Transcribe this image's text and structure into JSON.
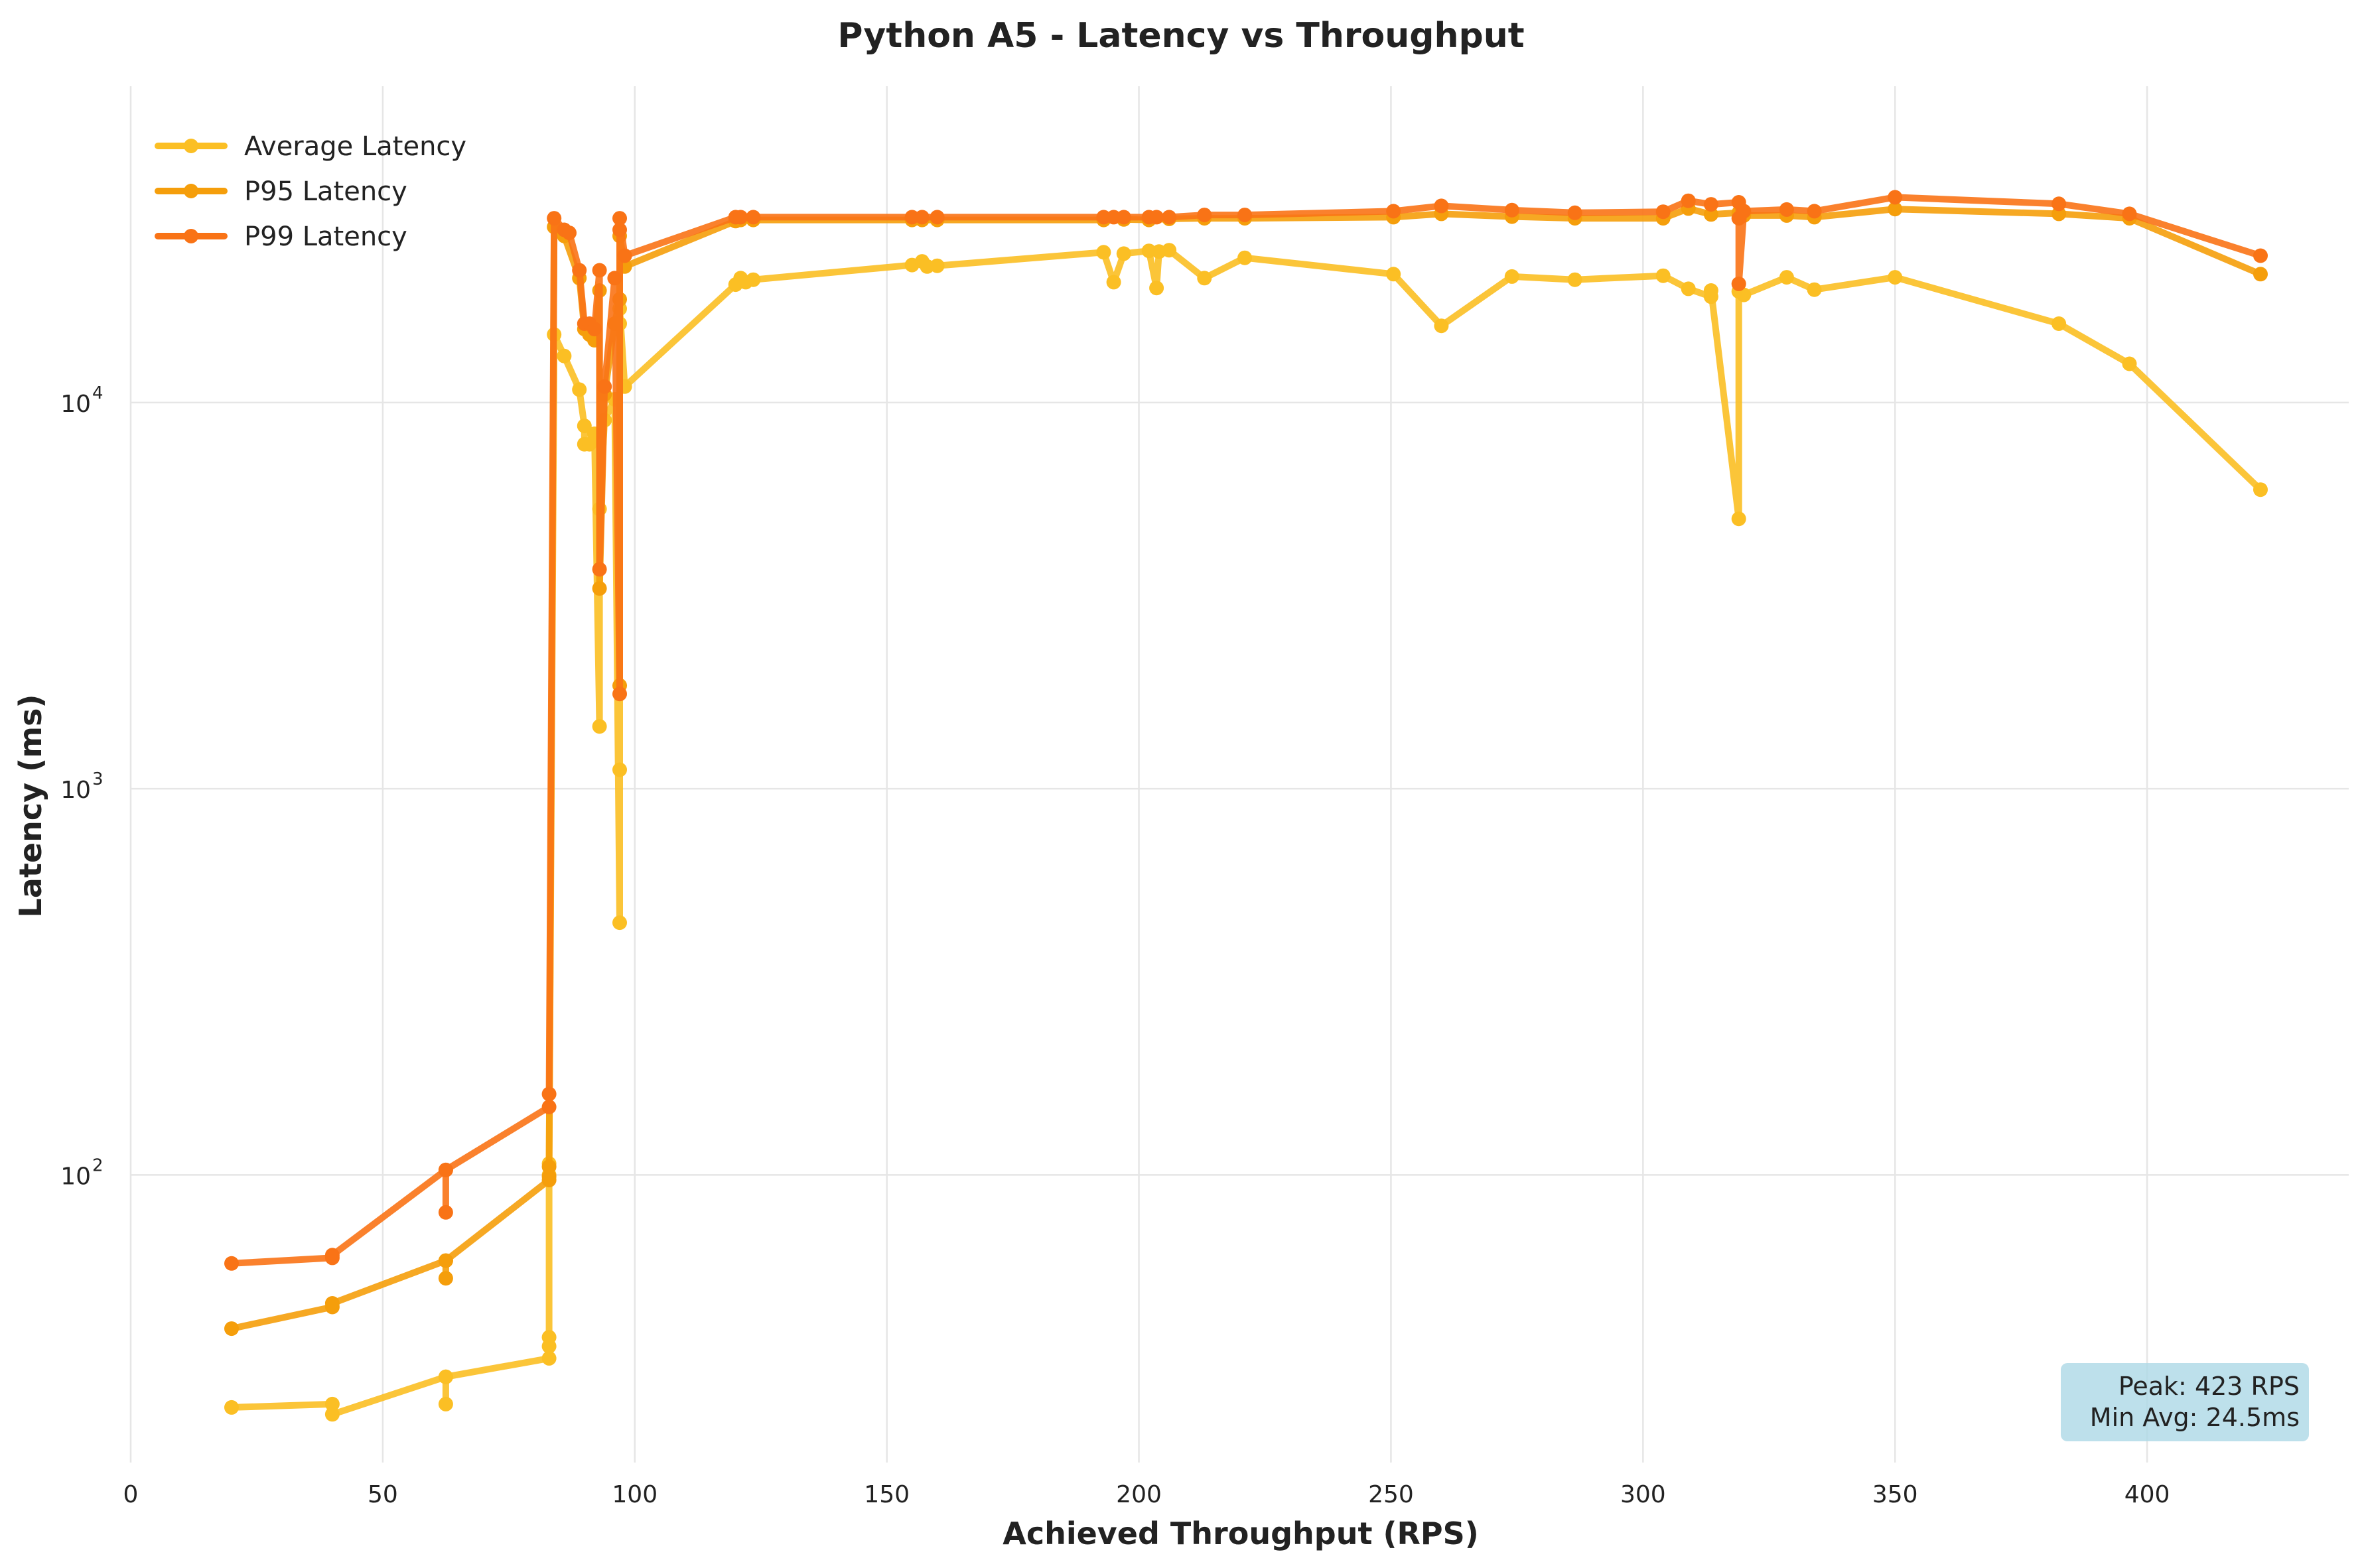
{
  "chart_data": {
    "type": "line",
    "title": "Python A5 - Latency vs Throughput",
    "xlabel": "Achieved Throughput (RPS)",
    "ylabel": "Latency (ms)",
    "xlim": [
      0,
      440
    ],
    "ylim": [
      18,
      52000
    ],
    "yscale": "log",
    "x_ticks": [
      0,
      50,
      100,
      150,
      200,
      250,
      300,
      350,
      400
    ],
    "x_tick_labels": [
      "0",
      "50",
      "100",
      "150",
      "200",
      "250",
      "300",
      "350",
      "400"
    ],
    "y_ticks": [
      100,
      1000,
      10000
    ],
    "y_tick_labels": [
      {
        "base": "10",
        "exp": "2"
      },
      {
        "base": "10",
        "exp": "3"
      },
      {
        "base": "10",
        "exp": "4"
      }
    ],
    "grid": true,
    "legend_position": "top-left",
    "annotation": {
      "lines": [
        "Peak: 423 RPS",
        "Min Avg: 24.5ms"
      ],
      "position": "bottom-right",
      "bg_color": "#add8e6"
    },
    "series": [
      {
        "name": "Average Latency",
        "color": "#fbbf24",
        "points": [
          [
            20,
            25
          ],
          [
            40,
            25.5
          ],
          [
            40,
            24
          ],
          [
            62.5,
            30
          ],
          [
            62.5,
            25.5
          ],
          [
            62.5,
            30
          ],
          [
            83,
            33.5
          ],
          [
            83,
            36
          ],
          [
            83,
            38
          ],
          [
            83,
            100
          ],
          [
            83,
            107
          ],
          [
            84,
            15000
          ],
          [
            86,
            13200
          ],
          [
            89,
            10800
          ],
          [
            90,
            8700
          ],
          [
            90,
            7800
          ],
          [
            91,
            7800
          ],
          [
            92,
            8300
          ],
          [
            93,
            1450
          ],
          [
            93,
            5300
          ],
          [
            94,
            9000
          ],
          [
            96,
            10200
          ],
          [
            97,
            450
          ],
          [
            97,
            1120
          ],
          [
            97,
            16000
          ],
          [
            97,
            17500
          ],
          [
            98,
            11000
          ],
          [
            120,
            20200
          ],
          [
            121,
            21000
          ],
          [
            122,
            20500
          ],
          [
            123.5,
            20800
          ],
          [
            155,
            22700
          ],
          [
            157,
            23200
          ],
          [
            158,
            22500
          ],
          [
            160,
            22600
          ],
          [
            193,
            24500
          ],
          [
            195,
            20500
          ],
          [
            197,
            24300
          ],
          [
            202,
            24700
          ],
          [
            203.5,
            19800
          ],
          [
            204,
            24600
          ],
          [
            206,
            24800
          ],
          [
            213,
            21000
          ],
          [
            221,
            23700
          ],
          [
            250.5,
            21500
          ],
          [
            260,
            15800
          ],
          [
            274,
            21200
          ],
          [
            286.5,
            20800
          ],
          [
            304,
            21300
          ],
          [
            309,
            19700
          ],
          [
            313.5,
            18800
          ],
          [
            313.5,
            19500
          ],
          [
            319,
            5000
          ],
          [
            319,
            19400
          ],
          [
            320,
            19000
          ],
          [
            328.5,
            21100
          ],
          [
            334,
            19600
          ],
          [
            350,
            21100
          ],
          [
            382.5,
            16000
          ],
          [
            396.5,
            12600
          ],
          [
            422.5,
            5950
          ]
        ]
      },
      {
        "name": "P95 Latency",
        "color": "#f59e0b",
        "points": [
          [
            20,
            40
          ],
          [
            40,
            45.5
          ],
          [
            40,
            46.5
          ],
          [
            62.5,
            60
          ],
          [
            62.5,
            54
          ],
          [
            62.5,
            60
          ],
          [
            83,
            97
          ],
          [
            83,
            99
          ],
          [
            83,
            105
          ],
          [
            84,
            28500
          ],
          [
            86,
            27000
          ],
          [
            89,
            21000
          ],
          [
            90,
            15500
          ],
          [
            91,
            15000
          ],
          [
            92,
            14500
          ],
          [
            93,
            19500
          ],
          [
            93,
            3300
          ],
          [
            94,
            10500
          ],
          [
            96,
            16000
          ],
          [
            97,
            18500
          ],
          [
            97,
            1850
          ],
          [
            97,
            27000
          ],
          [
            98,
            22500
          ],
          [
            120,
            29500
          ],
          [
            121,
            29700
          ],
          [
            123.5,
            29700
          ],
          [
            155,
            29700
          ],
          [
            157,
            29700
          ],
          [
            160,
            29700
          ],
          [
            193,
            29700
          ],
          [
            197,
            29800
          ],
          [
            202,
            29700
          ],
          [
            206,
            29900
          ],
          [
            213,
            30000
          ],
          [
            221,
            30000
          ],
          [
            250.5,
            30200
          ],
          [
            260,
            30800
          ],
          [
            274,
            30300
          ],
          [
            286.5,
            30000
          ],
          [
            304,
            30000
          ],
          [
            309,
            31800
          ],
          [
            313.5,
            30700
          ],
          [
            319,
            31000
          ],
          [
            320,
            30500
          ],
          [
            328.5,
            30500
          ],
          [
            334,
            30200
          ],
          [
            350,
            31700
          ],
          [
            382.5,
            30800
          ],
          [
            396.5,
            30000
          ],
          [
            422.5,
            21500
          ]
        ]
      },
      {
        "name": "P99 Latency",
        "color": "#f97316",
        "points": [
          [
            20,
            59
          ],
          [
            40,
            61
          ],
          [
            40,
            62
          ],
          [
            62.5,
            103
          ],
          [
            62.5,
            80
          ],
          [
            62.5,
            103
          ],
          [
            83,
            150
          ],
          [
            83,
            162
          ],
          [
            84,
            30000
          ],
          [
            86,
            28000
          ],
          [
            87,
            27500
          ],
          [
            89,
            22000
          ],
          [
            90,
            16000
          ],
          [
            91,
            16000
          ],
          [
            92,
            15500
          ],
          [
            93,
            22000
          ],
          [
            93,
            3700
          ],
          [
            94,
            11000
          ],
          [
            96,
            21000
          ],
          [
            97,
            1760
          ],
          [
            97,
            28000
          ],
          [
            97,
            30000
          ],
          [
            98,
            24000
          ],
          [
            120,
            30200
          ],
          [
            121,
            30200
          ],
          [
            123.5,
            30200
          ],
          [
            155,
            30200
          ],
          [
            157,
            30200
          ],
          [
            160,
            30200
          ],
          [
            193,
            30200
          ],
          [
            195,
            30200
          ],
          [
            197,
            30200
          ],
          [
            202,
            30200
          ],
          [
            203.5,
            30200
          ],
          [
            206,
            30200
          ],
          [
            213,
            30600
          ],
          [
            221,
            30600
          ],
          [
            250.5,
            31300
          ],
          [
            260,
            32300
          ],
          [
            274,
            31500
          ],
          [
            286.5,
            31000
          ],
          [
            304,
            31200
          ],
          [
            309,
            33300
          ],
          [
            313.5,
            32600
          ],
          [
            319,
            33000
          ],
          [
            319,
            30000
          ],
          [
            319,
            20300
          ],
          [
            320,
            31300
          ],
          [
            328.5,
            31600
          ],
          [
            334,
            31300
          ],
          [
            350,
            34000
          ],
          [
            382.5,
            32700
          ],
          [
            396.5,
            30800
          ],
          [
            422.5,
            24000
          ]
        ]
      }
    ]
  }
}
